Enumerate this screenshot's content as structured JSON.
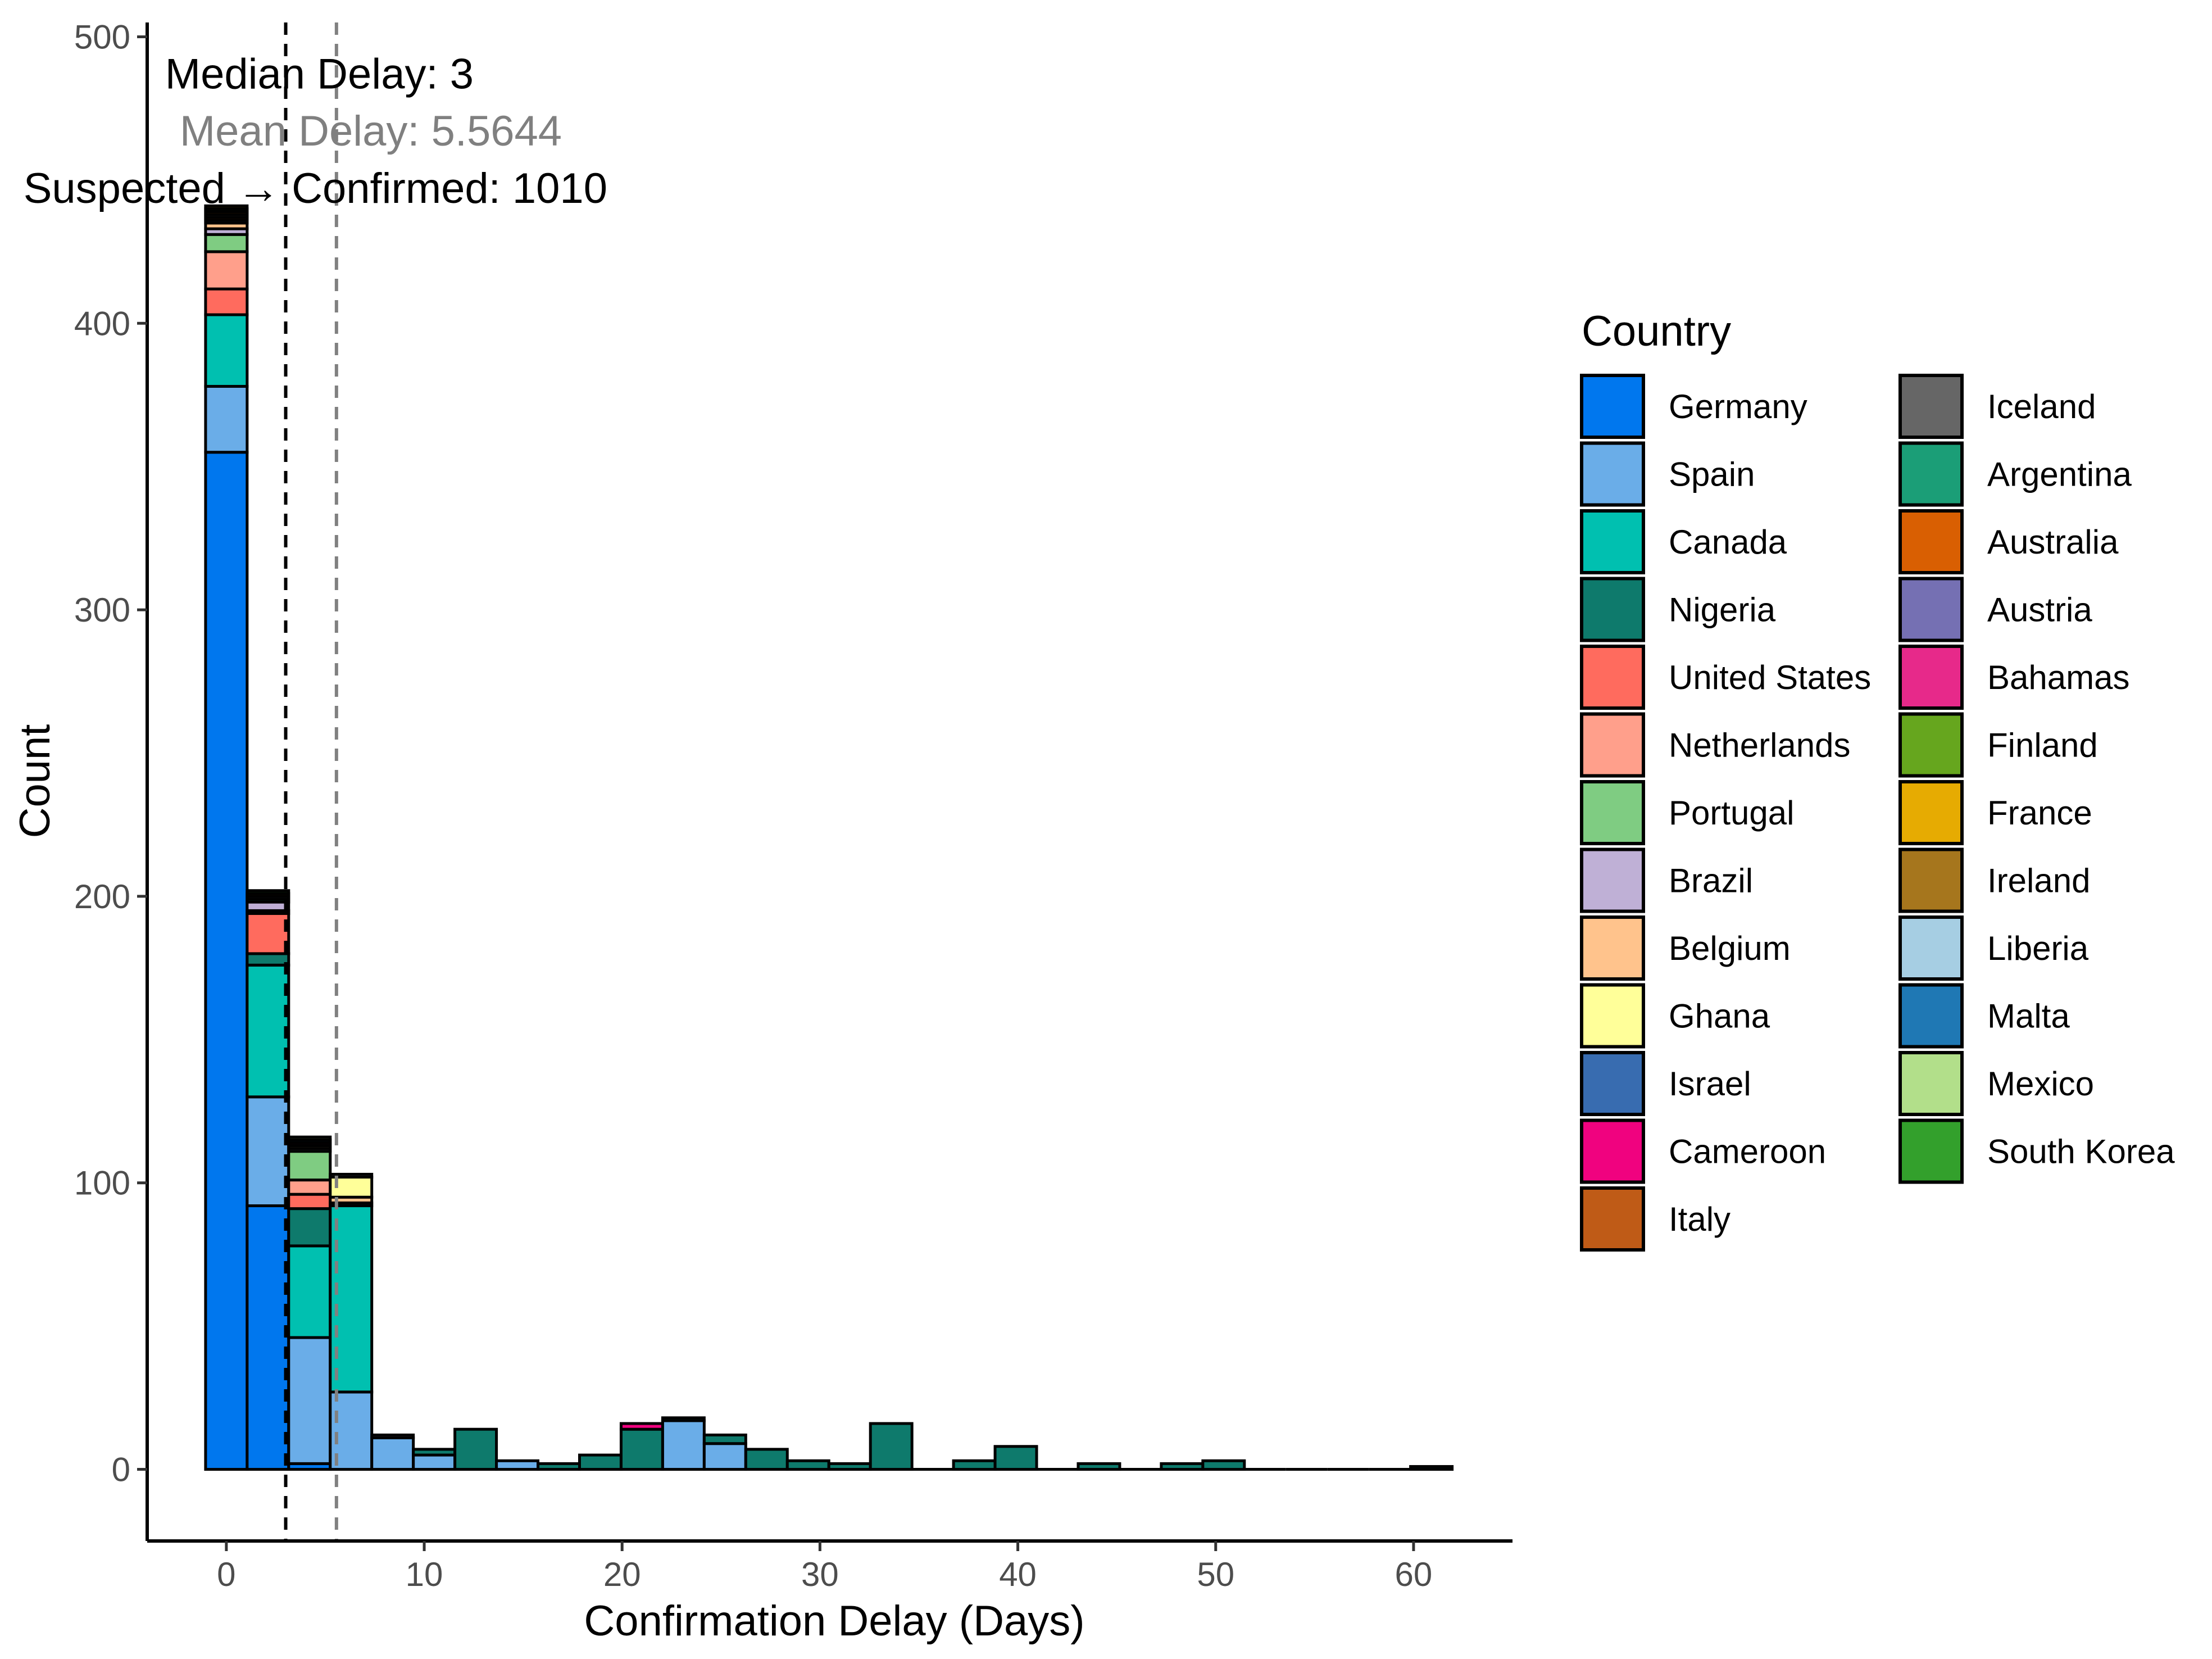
{
  "chart_data": {
    "type": "bar",
    "stacked": true,
    "xlabel": "Confirmation Delay (Days)",
    "ylabel": "Count",
    "xlim": [
      -4,
      65
    ],
    "ylim": [
      -25,
      505
    ],
    "x_ticks": [
      0,
      10,
      20,
      30,
      40,
      50,
      60
    ],
    "y_ticks": [
      0,
      100,
      200,
      300,
      400,
      500
    ],
    "bin_width": 2.1,
    "bins": [
      0,
      2.1,
      4.2,
      6.3,
      8.4,
      10.5,
      12.6,
      14.7,
      16.8,
      18.9,
      21,
      23.1,
      25.2,
      27.3,
      29.4,
      31.5,
      33.6,
      35.7,
      37.8,
      39.9,
      42,
      44.1,
      46.2,
      48.3,
      50.4,
      52.5,
      54.6,
      56.7,
      58.8,
      60.9
    ],
    "grid": false,
    "legend": {
      "title": "Country",
      "position": "right"
    },
    "series": [
      {
        "name": "Germany",
        "color": "#0077EE",
        "values": [
          355,
          92,
          2,
          0,
          0,
          0,
          0,
          0,
          0,
          0,
          0,
          0,
          0,
          0,
          0,
          0,
          0,
          0,
          0,
          0,
          0,
          0,
          0,
          0,
          0,
          0,
          0,
          0,
          0,
          0
        ]
      },
      {
        "name": "Spain",
        "color": "#6AADE8",
        "values": [
          23,
          38,
          44,
          27,
          11,
          5,
          0,
          3,
          0,
          0,
          0,
          17,
          9,
          0,
          0,
          0,
          0,
          0,
          0,
          0,
          0,
          0,
          0,
          0,
          0,
          0,
          0,
          0,
          0,
          0
        ]
      },
      {
        "name": "Canada",
        "color": "#00C0B0",
        "values": [
          25,
          46,
          32,
          65,
          0,
          0,
          0,
          0,
          0,
          0,
          0,
          0,
          0,
          0,
          0,
          0,
          0,
          0,
          0,
          0,
          0,
          0,
          0,
          0,
          0,
          0,
          0,
          0,
          0,
          0
        ]
      },
      {
        "name": "Nigeria",
        "color": "#0E7A6C",
        "values": [
          0,
          4,
          13,
          0,
          0,
          2,
          14,
          0,
          2,
          5,
          14,
          1,
          3,
          7,
          3,
          2,
          16,
          0,
          3,
          8,
          0,
          2,
          0,
          2,
          3,
          0,
          0,
          0,
          0,
          1
        ]
      },
      {
        "name": "United States",
        "color": "#FF6B5E",
        "values": [
          9,
          14,
          5,
          0,
          0,
          0,
          0,
          0,
          0,
          0,
          0,
          0,
          0,
          0,
          0,
          0,
          0,
          0,
          0,
          0,
          0,
          0,
          0,
          0,
          0,
          0,
          0,
          0,
          0,
          0
        ]
      },
      {
        "name": "Netherlands",
        "color": "#FF9F8B",
        "values": [
          13,
          0,
          5,
          0,
          0,
          0,
          0,
          0,
          0,
          0,
          0,
          0,
          0,
          0,
          0,
          0,
          0,
          0,
          0,
          0,
          0,
          0,
          0,
          0,
          0,
          0,
          0,
          0,
          0,
          0
        ]
      },
      {
        "name": "Portugal",
        "color": "#7FCC82",
        "values": [
          6,
          1,
          10,
          0,
          0,
          0,
          0,
          0,
          0,
          0,
          0,
          0,
          0,
          0,
          0,
          0,
          0,
          0,
          0,
          0,
          0,
          0,
          0,
          0,
          0,
          0,
          0,
          0,
          0,
          0
        ]
      },
      {
        "name": "Brazil",
        "color": "#BFB0D6",
        "values": [
          2,
          3,
          1,
          1,
          1,
          0,
          0,
          0,
          0,
          0,
          0,
          0,
          0,
          0,
          0,
          0,
          0,
          0,
          0,
          0,
          0,
          0,
          0,
          0,
          0,
          0,
          0,
          0,
          0,
          0
        ]
      },
      {
        "name": "Belgium",
        "color": "#FFC38C",
        "values": [
          2,
          0,
          1,
          2,
          0,
          0,
          0,
          0,
          0,
          0,
          0,
          0,
          0,
          0,
          0,
          0,
          0,
          0,
          0,
          0,
          0,
          0,
          0,
          0,
          0,
          0,
          0,
          0,
          0,
          0
        ]
      },
      {
        "name": "Ghana",
        "color": "#FFFF99",
        "values": [
          0,
          0,
          0,
          7,
          0,
          0,
          0,
          0,
          0,
          0,
          0,
          0,
          0,
          0,
          0,
          0,
          0,
          0,
          0,
          0,
          0,
          0,
          0,
          0,
          0,
          0,
          0,
          0,
          0,
          0
        ]
      },
      {
        "name": "Israel",
        "color": "#386CB0",
        "values": [
          1,
          0,
          0,
          0,
          0,
          0,
          0,
          0,
          0,
          0,
          0,
          0,
          0,
          0,
          0,
          0,
          0,
          0,
          0,
          0,
          0,
          0,
          0,
          0,
          0,
          0,
          0,
          0,
          0,
          0
        ]
      },
      {
        "name": "Cameroon",
        "color": "#F0027F",
        "values": [
          0,
          0,
          0,
          0,
          0,
          0,
          0,
          0,
          0,
          0,
          2,
          0,
          0,
          0,
          0,
          0,
          0,
          0,
          0,
          0,
          0,
          0,
          0,
          0,
          0,
          0,
          0,
          0,
          0,
          0
        ]
      },
      {
        "name": "Italy",
        "color": "#BF5B17",
        "values": [
          1,
          0,
          0,
          0,
          0,
          0,
          0,
          0,
          0,
          0,
          0,
          0,
          0,
          0,
          0,
          0,
          0,
          0,
          0,
          0,
          0,
          0,
          0,
          0,
          0,
          0,
          0,
          0,
          0,
          0
        ]
      },
      {
        "name": "Iceland",
        "color": "#666666",
        "values": [
          1,
          0,
          0,
          0,
          0,
          0,
          0,
          0,
          0,
          0,
          0,
          0,
          0,
          0,
          0,
          0,
          0,
          0,
          0,
          0,
          0,
          0,
          0,
          0,
          0,
          0,
          0,
          0,
          0,
          0
        ]
      },
      {
        "name": "Argentina",
        "color": "#1B9E77",
        "values": [
          0,
          1,
          0,
          0,
          0,
          0,
          0,
          0,
          0,
          0,
          0,
          0,
          0,
          0,
          0,
          0,
          0,
          0,
          0,
          0,
          0,
          0,
          0,
          0,
          0,
          0,
          0,
          0,
          0,
          0
        ]
      },
      {
        "name": "Australia",
        "color": "#D95F02",
        "values": [
          1,
          0,
          0,
          0,
          0,
          0,
          0,
          0,
          0,
          0,
          0,
          0,
          0,
          0,
          0,
          0,
          0,
          0,
          0,
          0,
          0,
          0,
          0,
          0,
          0,
          0,
          0,
          0,
          0,
          0
        ]
      },
      {
        "name": "Austria",
        "color": "#7570B3",
        "values": [
          0,
          1,
          0,
          0,
          0,
          0,
          0,
          0,
          0,
          0,
          0,
          0,
          0,
          0,
          0,
          0,
          0,
          0,
          0,
          0,
          0,
          0,
          0,
          0,
          0,
          0,
          0,
          0,
          0,
          0
        ]
      },
      {
        "name": "Bahamas",
        "color": "#E7298A",
        "values": [
          0,
          0,
          1,
          0,
          0,
          0,
          0,
          0,
          0,
          0,
          0,
          0,
          0,
          0,
          0,
          0,
          0,
          0,
          0,
          0,
          0,
          0,
          0,
          0,
          0,
          0,
          0,
          0,
          0,
          0
        ]
      },
      {
        "name": "Finland",
        "color": "#66A61E",
        "values": [
          1,
          0,
          0,
          0,
          0,
          0,
          0,
          0,
          0,
          0,
          0,
          0,
          0,
          0,
          0,
          0,
          0,
          0,
          0,
          0,
          0,
          0,
          0,
          0,
          0,
          0,
          0,
          0,
          0,
          0
        ]
      },
      {
        "name": "France",
        "color": "#E6AB02",
        "values": [
          1,
          0,
          0,
          0,
          0,
          0,
          0,
          0,
          0,
          0,
          0,
          0,
          0,
          0,
          0,
          0,
          0,
          0,
          0,
          0,
          0,
          0,
          0,
          0,
          0,
          0,
          0,
          0,
          0,
          0
        ]
      },
      {
        "name": "Ireland",
        "color": "#A6761D",
        "values": [
          0,
          1,
          0,
          0,
          0,
          0,
          0,
          0,
          0,
          0,
          0,
          0,
          0,
          0,
          0,
          0,
          0,
          0,
          0,
          0,
          0,
          0,
          0,
          0,
          0,
          0,
          0,
          0,
          0,
          0
        ]
      },
      {
        "name": "Liberia",
        "color": "#A6CEE3",
        "values": [
          0,
          0,
          0,
          1,
          0,
          0,
          0,
          0,
          0,
          0,
          0,
          0,
          0,
          0,
          0,
          0,
          0,
          0,
          0,
          0,
          0,
          0,
          0,
          0,
          0,
          0,
          0,
          0,
          0,
          0
        ]
      },
      {
        "name": "Malta",
        "color": "#1F78B4",
        "values": [
          0,
          0,
          1,
          0,
          0,
          0,
          0,
          0,
          0,
          0,
          0,
          0,
          0,
          0,
          0,
          0,
          0,
          0,
          0,
          0,
          0,
          0,
          0,
          0,
          0,
          0,
          0,
          0,
          0,
          0
        ]
      },
      {
        "name": "Mexico",
        "color": "#B2DF8A",
        "values": [
          0,
          0,
          1,
          0,
          0,
          0,
          0,
          0,
          0,
          0,
          0,
          0,
          0,
          0,
          0,
          0,
          0,
          0,
          0,
          0,
          0,
          0,
          0,
          0,
          0,
          0,
          0,
          0,
          0,
          0
        ]
      },
      {
        "name": "South Korea",
        "color": "#33A02C",
        "values": [
          0,
          1,
          0,
          0,
          0,
          0,
          0,
          0,
          0,
          0,
          0,
          0,
          0,
          0,
          0,
          0,
          0,
          0,
          0,
          0,
          0,
          0,
          0,
          0,
          0,
          0,
          0,
          0,
          0,
          0
        ]
      }
    ],
    "reference_lines": [
      {
        "name": "median",
        "x": 3,
        "color": "#000000",
        "style": "dashed"
      },
      {
        "name": "mean",
        "x": 5.5644,
        "color": "#808080",
        "style": "dashed"
      }
    ],
    "annotations": [
      {
        "text": "Median Delay: 3",
        "x": 4.7,
        "y": 482,
        "color": "#000000"
      },
      {
        "text": "Mean Delay: 5.5644",
        "x": 7.3,
        "y": 462,
        "color": "#808080"
      },
      {
        "text": "Suspected → Confirmed: 1010",
        "x": 4.5,
        "y": 442,
        "color": "#000000"
      }
    ]
  }
}
